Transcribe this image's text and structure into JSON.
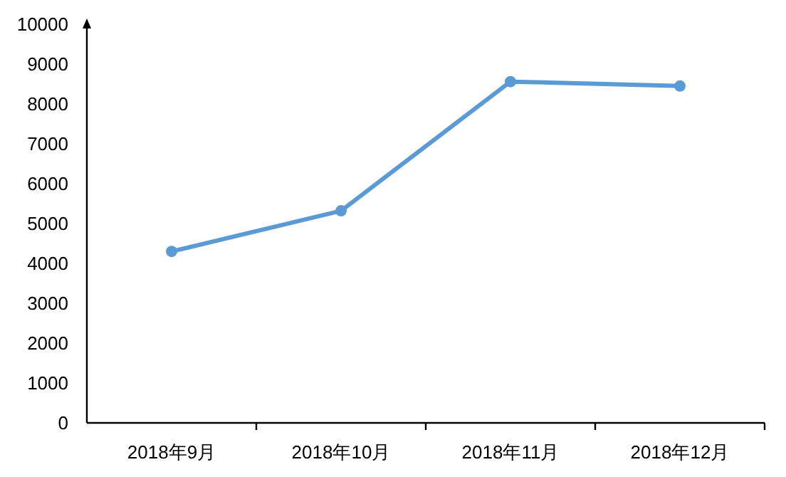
{
  "chart_data": {
    "type": "line",
    "categories": [
      "2018年9月",
      "2018年10月",
      "2018年11月",
      "2018年12月"
    ],
    "values": [
      4300,
      5320,
      8560,
      8450
    ],
    "color": "#5b9bd5",
    "marker": "circle",
    "line_style": "solid",
    "grid": false,
    "ylim": [
      0,
      10000
    ],
    "yticks": [
      0,
      1000,
      2000,
      3000,
      4000,
      5000,
      6000,
      7000,
      8000,
      9000,
      10000
    ]
  }
}
